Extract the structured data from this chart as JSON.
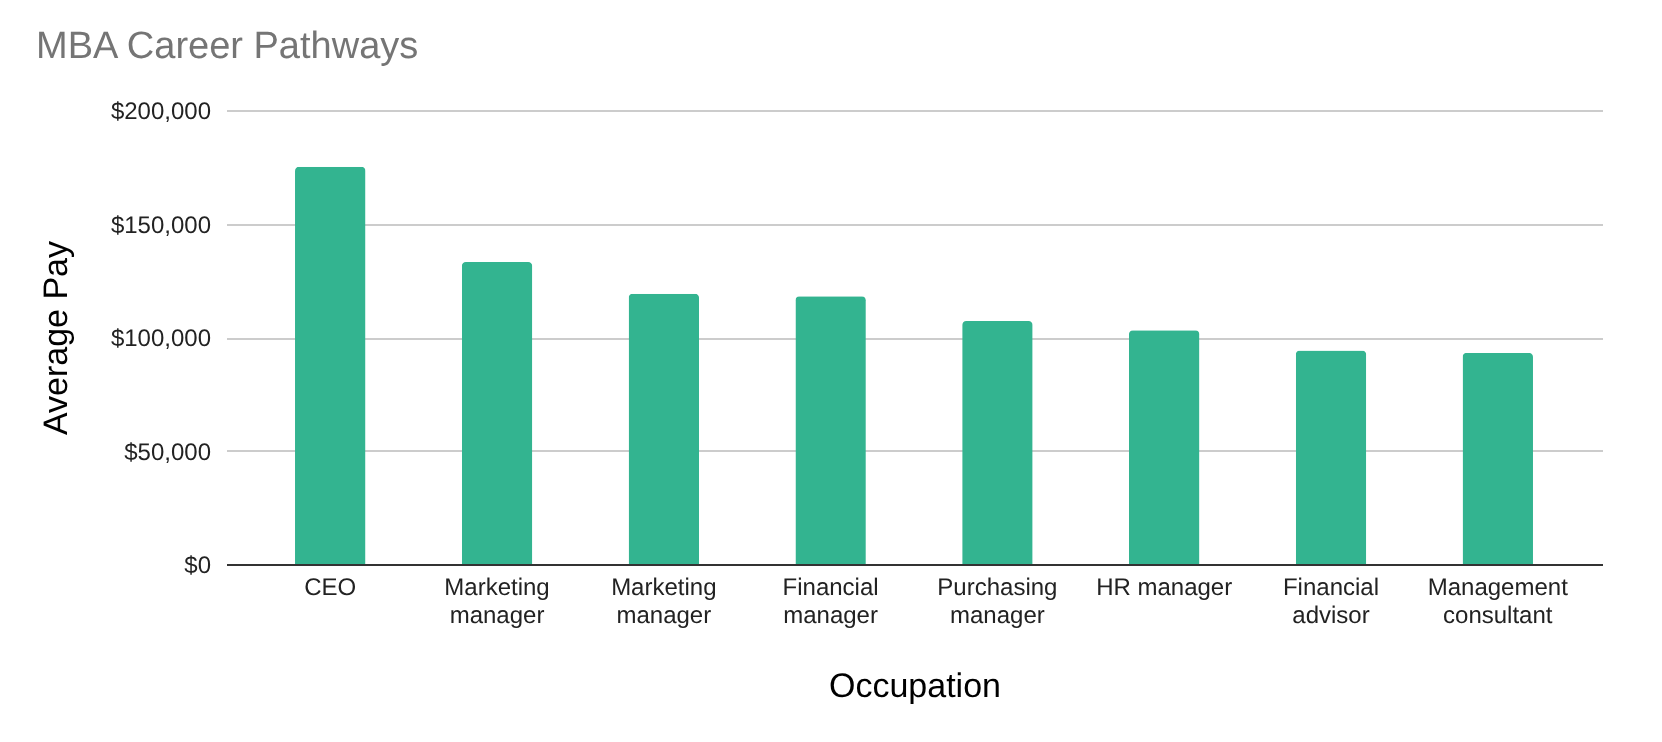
{
  "chart_data": {
    "type": "bar",
    "title": "MBA Career Pathways",
    "xlabel": "Occupation",
    "ylabel": "Average Pay",
    "categories": [
      "CEO",
      "Marketing manager",
      "Marketing manager",
      "Financial manager",
      "Purchasing manager",
      "HR manager",
      "Financial advisor",
      "Management consultant"
    ],
    "values": [
      175000,
      133000,
      119000,
      118000,
      107000,
      103000,
      94000,
      93000
    ],
    "color": "#33b490",
    "ylim": [
      0,
      200000
    ],
    "yticks": [
      {
        "value": 0,
        "label": "$0"
      },
      {
        "value": 50000,
        "label": "$50,000"
      },
      {
        "value": 100000,
        "label": "$100,000"
      },
      {
        "value": 150000,
        "label": "$150,000"
      },
      {
        "value": 200000,
        "label": "$200,000"
      }
    ],
    "grid": "y"
  }
}
